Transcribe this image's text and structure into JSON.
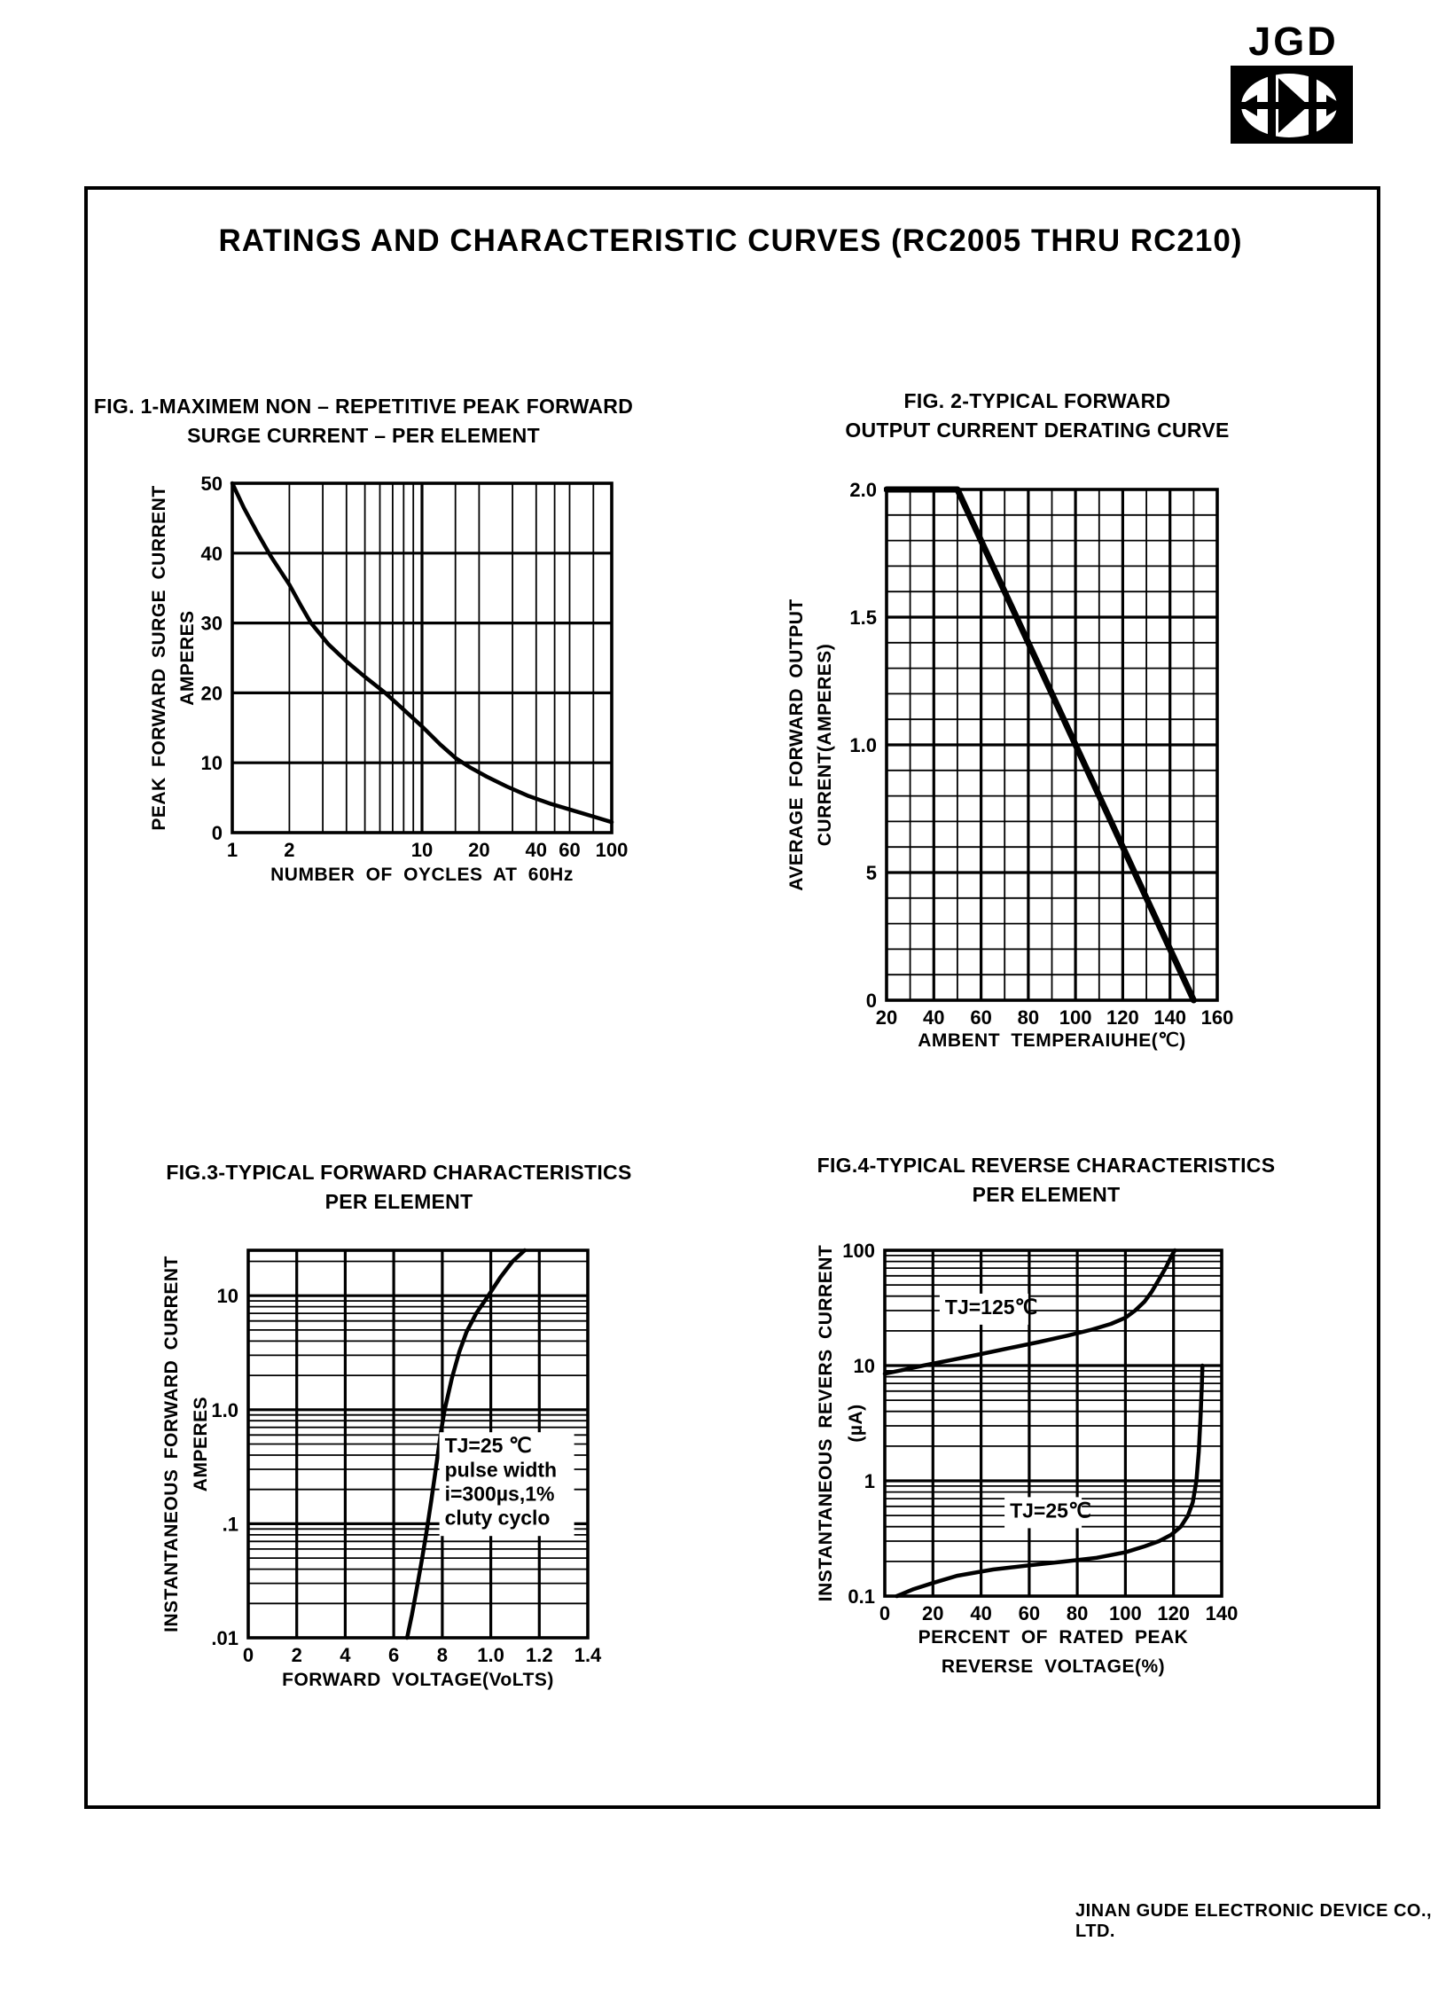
{
  "page": {
    "background": "#ffffff",
    "ink": "#000000"
  },
  "logo": {
    "text": "JGD"
  },
  "title": "RATINGS AND CHARACTERISTIC CURVES (RC2005 THRU RC210)",
  "footer": "JINAN GUDE ELECTRONIC DEVICE CO., LTD.",
  "chart_data": [
    {
      "id": "fig1",
      "type": "line",
      "caption_lines": [
        "FIG. 1-MAXIMEM NON – REPETITIVE PEAK FORWARD",
        "SURGE CURRENT – PER ELEMENT"
      ],
      "xlabel_lines": [
        "NUMBER OF OYCLES AT 60Hz"
      ],
      "ylabel_lines": [
        "PEAK FORWARD SURGE CURRENT",
        "AMPERES"
      ],
      "x": {
        "scale": "log",
        "min": 1,
        "max": 100,
        "ticks": [
          {
            "v": 1,
            "l": "1"
          },
          {
            "v": 2,
            "l": "2"
          },
          {
            "v": 10,
            "l": "10"
          },
          {
            "v": 20,
            "l": "20"
          },
          {
            "v": 40,
            "l": "40"
          },
          {
            "v": 60,
            "l": "60"
          },
          {
            "v": 100,
            "l": "100"
          }
        ],
        "grid": {
          "minor": [
            2,
            3,
            4,
            5,
            6,
            7,
            8,
            9,
            15,
            20,
            30,
            40,
            50,
            60,
            80
          ],
          "major": [
            10
          ]
        }
      },
      "y": {
        "scale": "linear",
        "min": 0,
        "max": 50,
        "ticks": [
          {
            "v": 0,
            "l": "0"
          },
          {
            "v": 10,
            "l": "10"
          },
          {
            "v": 20,
            "l": "20"
          },
          {
            "v": 30,
            "l": "30"
          },
          {
            "v": 40,
            "l": "40"
          },
          {
            "v": 50,
            "l": "50"
          }
        ],
        "grid": {
          "major": [
            10,
            20,
            30,
            40
          ]
        }
      },
      "series": [
        {
          "name": "peak-forward-surge-current",
          "points": [
            [
              1,
              50
            ],
            [
              1.15,
              46.5
            ],
            [
              1.35,
              43
            ],
            [
              1.6,
              39.5
            ],
            [
              2,
              35.5
            ],
            [
              2.3,
              32.5
            ],
            [
              2.6,
              30
            ],
            [
              3.2,
              27
            ],
            [
              4,
              24.5
            ],
            [
              5,
              22.3
            ],
            [
              6.4,
              20
            ],
            [
              8,
              17.6
            ],
            [
              10,
              15.2
            ],
            [
              12.5,
              12.6
            ],
            [
              15,
              10.7
            ],
            [
              18,
              9.3
            ],
            [
              22,
              8
            ],
            [
              28,
              6.6
            ],
            [
              36,
              5.3
            ],
            [
              48,
              4.1
            ],
            [
              62,
              3.2
            ],
            [
              80,
              2.3
            ],
            [
              100,
              1.5
            ]
          ]
        }
      ],
      "annotations": []
    },
    {
      "id": "fig2",
      "type": "line",
      "caption_lines": [
        "FIG. 2-TYPICAL FORWARD",
        "OUTPUT CURRENT DERATING CURVE"
      ],
      "xlabel_lines": [
        "AMBENT TEMPERAIUHE(℃)"
      ],
      "ylabel_lines": [
        "AVERAGE FORWARD OUTPUT",
        "CURRENT(AMPERES)"
      ],
      "x": {
        "scale": "linear",
        "min": 20,
        "max": 160,
        "ticks": [
          {
            "v": 20,
            "l": "20"
          },
          {
            "v": 40,
            "l": "40"
          },
          {
            "v": 60,
            "l": "60"
          },
          {
            "v": 80,
            "l": "80"
          },
          {
            "v": 100,
            "l": "100"
          },
          {
            "v": 120,
            "l": "120"
          },
          {
            "v": 140,
            "l": "140"
          },
          {
            "v": 160,
            "l": "160"
          }
        ],
        "grid": {
          "minor_step": 10,
          "major_step": 20
        }
      },
      "y": {
        "scale": "linear",
        "min": 0,
        "max": 2,
        "ticks": [
          {
            "v": 2,
            "l": "2.0"
          },
          {
            "v": 1.5,
            "l": "1.5"
          },
          {
            "v": 1,
            "l": "1.0"
          },
          {
            "v": 0.5,
            "l": "5"
          },
          {
            "v": 0,
            "l": "0"
          }
        ],
        "grid": {
          "minor_step": 0.1,
          "major_step": 0.5
        }
      },
      "series": [
        {
          "name": "output-current-derating",
          "points": [
            [
              20,
              2
            ],
            [
              50,
              2
            ],
            [
              150,
              0
            ]
          ]
        }
      ],
      "annotations": []
    },
    {
      "id": "fig3",
      "type": "line",
      "caption_lines": [
        "FIG.3-TYPICAL FORWARD CHARACTERISTICS",
        "PER ELEMENT"
      ],
      "xlabel_lines": [
        "FORWARD VOLTAGE(VoLTS)"
      ],
      "ylabel_lines": [
        "INSTANTANEOUS FORWARD CURRENT",
        "AMPERES"
      ],
      "x": {
        "scale": "linear",
        "min": 0,
        "max": 1.4,
        "ticks": [
          {
            "v": 0,
            "l": "0"
          },
          {
            "v": 0.2,
            "l": "2"
          },
          {
            "v": 0.4,
            "l": "4"
          },
          {
            "v": 0.6,
            "l": "6"
          },
          {
            "v": 0.8,
            "l": "8"
          },
          {
            "v": 1.0,
            "l": "1.0"
          },
          {
            "v": 1.2,
            "l": "1.2"
          },
          {
            "v": 1.4,
            "l": "1.4"
          }
        ],
        "grid": {
          "major_step": 0.2
        }
      },
      "y": {
        "scale": "log",
        "min": 0.01,
        "max": 25,
        "ticks": [
          {
            "v": 10,
            "l": "10"
          },
          {
            "v": 1,
            "l": "1.0"
          },
          {
            "v": 0.1,
            "l": ".1"
          },
          {
            "v": 0.01,
            "l": ".01"
          }
        ],
        "grid": {
          "log_minor": true
        }
      },
      "series": [
        {
          "name": "forward-characteristic-25c",
          "points": [
            [
              0.655,
              0.01
            ],
            [
              0.675,
              0.016
            ],
            [
              0.695,
              0.027
            ],
            [
              0.715,
              0.047
            ],
            [
              0.735,
              0.085
            ],
            [
              0.755,
              0.16
            ],
            [
              0.775,
              0.32
            ],
            [
              0.795,
              0.65
            ],
            [
              0.81,
              1.0
            ],
            [
              0.84,
              1.9
            ],
            [
              0.87,
              3.2
            ],
            [
              0.9,
              4.8
            ],
            [
              0.94,
              7
            ],
            [
              0.99,
              10
            ],
            [
              1.04,
              14.5
            ],
            [
              1.09,
              20
            ],
            [
              1.14,
              25
            ]
          ]
        }
      ],
      "annotations": [
        {
          "x": 0.81,
          "y": 0.42,
          "bg": true,
          "lines": [
            "TJ=25 ℃",
            "pulse width",
            "i=300µs,1%",
            "cluty cyclo"
          ]
        }
      ]
    },
    {
      "id": "fig4",
      "type": "line",
      "caption_lines": [
        "FIG.4-TYPICAL REVERSE CHARACTERISTICS",
        "PER ELEMENT"
      ],
      "xlabel_lines": [
        "PERCENT OF RATED PEAK",
        "REVERSE VOLTAGE(%)"
      ],
      "ylabel_lines": [
        "INSTANTANEOUS REVERS CURRENT",
        "(µA)"
      ],
      "x": {
        "scale": "linear",
        "min": 0,
        "max": 140,
        "ticks": [
          {
            "v": 0,
            "l": "0"
          },
          {
            "v": 20,
            "l": "20"
          },
          {
            "v": 40,
            "l": "40"
          },
          {
            "v": 60,
            "l": "60"
          },
          {
            "v": 80,
            "l": "80"
          },
          {
            "v": 100,
            "l": "100"
          },
          {
            "v": 120,
            "l": "120"
          },
          {
            "v": 140,
            "l": "140"
          }
        ],
        "grid": {
          "major_step": 20
        }
      },
      "y": {
        "scale": "log",
        "min": 0.1,
        "max": 100,
        "ticks": [
          {
            "v": 100,
            "l": "100"
          },
          {
            "v": 10,
            "l": "10"
          },
          {
            "v": 1,
            "l": "1"
          },
          {
            "v": 0.1,
            "l": "0.1"
          }
        ],
        "grid": {
          "log_minor": true
        }
      },
      "series": [
        {
          "name": "reverse-current-tj-125c",
          "points": [
            [
              0,
              8.5
            ],
            [
              8,
              9.2
            ],
            [
              16,
              10
            ],
            [
              28,
              11.2
            ],
            [
              40,
              12.6
            ],
            [
              52,
              14.2
            ],
            [
              64,
              16
            ],
            [
              76,
              18.2
            ],
            [
              86,
              20.5
            ],
            [
              94,
              23
            ],
            [
              100,
              26
            ],
            [
              104,
              30
            ],
            [
              108,
              36
            ],
            [
              111,
              44
            ],
            [
              114,
              56
            ],
            [
              117,
              72
            ],
            [
              119,
              88
            ],
            [
              120.5,
              100
            ]
          ]
        },
        {
          "name": "reverse-current-tj-25c",
          "points": [
            [
              5,
              0.1
            ],
            [
              12,
              0.115
            ],
            [
              20,
              0.13
            ],
            [
              30,
              0.15
            ],
            [
              45,
              0.17
            ],
            [
              60,
              0.185
            ],
            [
              75,
              0.2
            ],
            [
              88,
              0.215
            ],
            [
              100,
              0.24
            ],
            [
              108,
              0.27
            ],
            [
              114,
              0.3
            ],
            [
              119,
              0.34
            ],
            [
              123,
              0.4
            ],
            [
              126,
              0.5
            ],
            [
              128,
              0.65
            ],
            [
              129.5,
              1
            ],
            [
              130.5,
              1.8
            ],
            [
              131.2,
              3.5
            ],
            [
              131.8,
              7
            ],
            [
              132,
              10
            ]
          ]
        }
      ],
      "annotations": [
        {
          "x": 25,
          "y": 28,
          "bg": true,
          "lines": [
            "TJ=125℃"
          ]
        },
        {
          "x": 52,
          "y": 0.48,
          "bg": true,
          "lines": [
            "TJ=25℃"
          ]
        }
      ]
    }
  ]
}
